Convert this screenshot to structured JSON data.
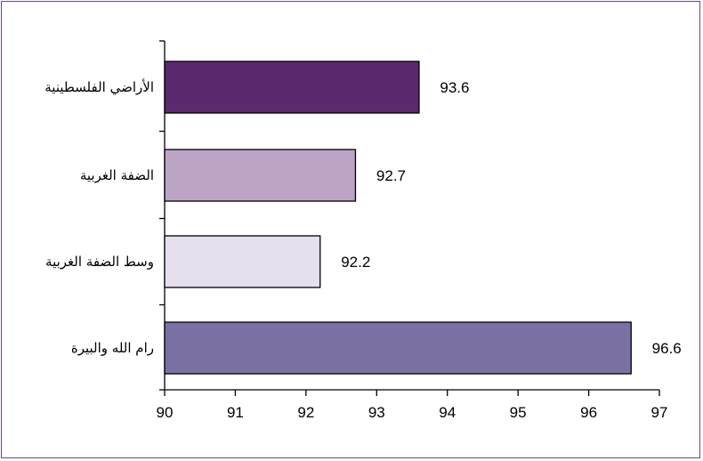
{
  "chart_data": {
    "type": "bar",
    "orientation": "horizontal",
    "categories": [
      "الأراضي الفلسطينية",
      "الضفة الغربية",
      "وسط الضفة الغربية",
      "رام الله والبيرة"
    ],
    "values": [
      93.6,
      92.7,
      92.2,
      96.6
    ],
    "value_labels": [
      "93.6",
      "92.7",
      "92.2",
      "96.6"
    ],
    "bar_colors": [
      "#5b2a6e",
      "#bba4c6",
      "#e6dfee",
      "#7b70a4"
    ],
    "xlim": [
      90,
      97
    ],
    "x_ticks": [
      90,
      91,
      92,
      93,
      94,
      95,
      96,
      97
    ],
    "x_tick_labels": [
      "90",
      "91",
      "92",
      "93",
      "94",
      "95",
      "96",
      "97"
    ],
    "grid": false,
    "legend": "none",
    "title": "",
    "xlabel": "",
    "ylabel": ""
  },
  "colors": {
    "frame_border": "#6b4a86",
    "axis": "#000000"
  }
}
